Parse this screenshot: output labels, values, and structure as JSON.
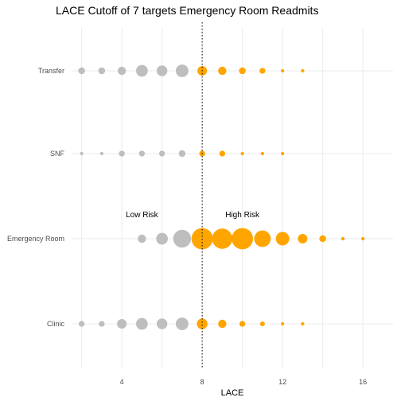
{
  "chart_data": {
    "type": "scatter",
    "title": "LACE Cutoff of 7 targets Emergency Room Readmits",
    "xlabel": "LACE",
    "ylabel": "",
    "xlim": [
      1.5,
      17.5
    ],
    "xticks": [
      4,
      8,
      12,
      16
    ],
    "categories": [
      "Transfer",
      "SNF",
      "Emergency Room",
      "Clinic"
    ],
    "cutoff": 8,
    "grid": true,
    "legend": "none",
    "annotations": [
      {
        "text": "Low Risk",
        "x": 5,
        "category": "Emergency Room"
      },
      {
        "text": "High Risk",
        "x": 10,
        "category": "Emergency Room"
      }
    ],
    "colors": {
      "low": "#bebebe",
      "high": "#ffa500"
    },
    "series": [
      {
        "category": "Transfer",
        "points": [
          {
            "x": 2,
            "size": 2
          },
          {
            "x": 3,
            "size": 2
          },
          {
            "x": 4,
            "size": 3
          },
          {
            "x": 5,
            "size": 6
          },
          {
            "x": 6,
            "size": 5
          },
          {
            "x": 7,
            "size": 7
          },
          {
            "x": 8,
            "size": 4
          },
          {
            "x": 9,
            "size": 3
          },
          {
            "x": 10,
            "size": 2
          },
          {
            "x": 11,
            "size": 1.5
          },
          {
            "x": 12,
            "size": 0.5
          },
          {
            "x": 13,
            "size": 0.5
          }
        ]
      },
      {
        "category": "SNF",
        "points": [
          {
            "x": 2,
            "size": 0.5
          },
          {
            "x": 3,
            "size": 0.5
          },
          {
            "x": 4,
            "size": 1.5
          },
          {
            "x": 5,
            "size": 1.5
          },
          {
            "x": 6,
            "size": 1.5
          },
          {
            "x": 7,
            "size": 2
          },
          {
            "x": 8,
            "size": 1.5
          },
          {
            "x": 9,
            "size": 1.5
          },
          {
            "x": 10,
            "size": 0.5
          },
          {
            "x": 11,
            "size": 0.5
          },
          {
            "x": 12,
            "size": 0.5
          }
        ]
      },
      {
        "category": "Emergency Room",
        "points": [
          {
            "x": 5,
            "size": 3
          },
          {
            "x": 6,
            "size": 6
          },
          {
            "x": 7,
            "size": 14
          },
          {
            "x": 8,
            "size": 20
          },
          {
            "x": 9,
            "size": 18
          },
          {
            "x": 10,
            "size": 20
          },
          {
            "x": 11,
            "size": 12
          },
          {
            "x": 12,
            "size": 8
          },
          {
            "x": 13,
            "size": 4
          },
          {
            "x": 14,
            "size": 2
          },
          {
            "x": 15,
            "size": 0.5
          },
          {
            "x": 16,
            "size": 0.5
          }
        ]
      },
      {
        "category": "Clinic",
        "points": [
          {
            "x": 2,
            "size": 1.5
          },
          {
            "x": 3,
            "size": 1.5
          },
          {
            "x": 4,
            "size": 4
          },
          {
            "x": 5,
            "size": 6
          },
          {
            "x": 6,
            "size": 5
          },
          {
            "x": 7,
            "size": 7
          },
          {
            "x": 8,
            "size": 5
          },
          {
            "x": 9,
            "size": 3
          },
          {
            "x": 10,
            "size": 1.5
          },
          {
            "x": 11,
            "size": 1
          },
          {
            "x": 12,
            "size": 0.5
          },
          {
            "x": 13,
            "size": 0.5
          }
        ]
      }
    ]
  }
}
